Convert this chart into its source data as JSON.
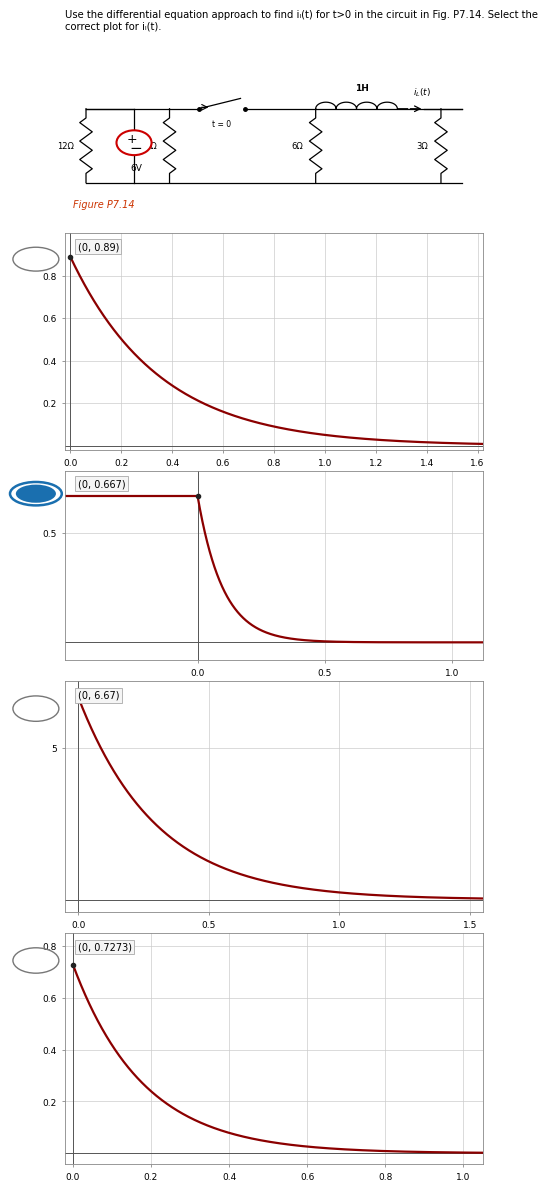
{
  "plots": [
    {
      "label": "(0, 0.89)",
      "i0": 0.89,
      "tau": 0.35,
      "xlim": [
        -0.02,
        1.62
      ],
      "ylim": [
        -0.02,
        1.0
      ],
      "xticks": [
        0,
        0.2,
        0.4,
        0.6,
        0.8,
        1.0,
        1.2,
        1.4,
        1.6
      ],
      "yticks": [
        0.2,
        0.4,
        0.6,
        0.8
      ],
      "selected": false,
      "has_neg_flat": false
    },
    {
      "label": "(0, 0.667)",
      "i0": 0.667,
      "tau": 0.1,
      "xlim": [
        -0.52,
        1.12
      ],
      "ylim": [
        -0.08,
        0.78
      ],
      "xticks": [
        0,
        0.5,
        1.0
      ],
      "yticks": [
        0.5
      ],
      "selected": true,
      "has_neg_flat": true
    },
    {
      "label": "(0, 6.67)",
      "i0": 6.67,
      "tau": 0.3,
      "xlim": [
        -0.05,
        1.55
      ],
      "ylim": [
        -0.4,
        7.2
      ],
      "xticks": [
        0,
        0.5,
        1.0,
        1.5
      ],
      "yticks": [
        5
      ],
      "selected": false,
      "has_neg_flat": false
    },
    {
      "label": "(0, 0.7273)",
      "i0": 0.7273,
      "tau": 0.18,
      "xlim": [
        -0.02,
        1.05
      ],
      "ylim": [
        -0.04,
        0.85
      ],
      "xticks": [
        0,
        0.2,
        0.4,
        0.6,
        0.8,
        1.0
      ],
      "yticks": [
        0.2,
        0.4,
        0.6,
        0.8
      ],
      "selected": false,
      "has_neg_flat": false
    }
  ],
  "curve_color": "#8B0000",
  "grid_color": "#cccccc",
  "selected_fill_color": "#1a6faf",
  "bg_color": "#ffffff",
  "ann_bg": "#f5f5f5"
}
